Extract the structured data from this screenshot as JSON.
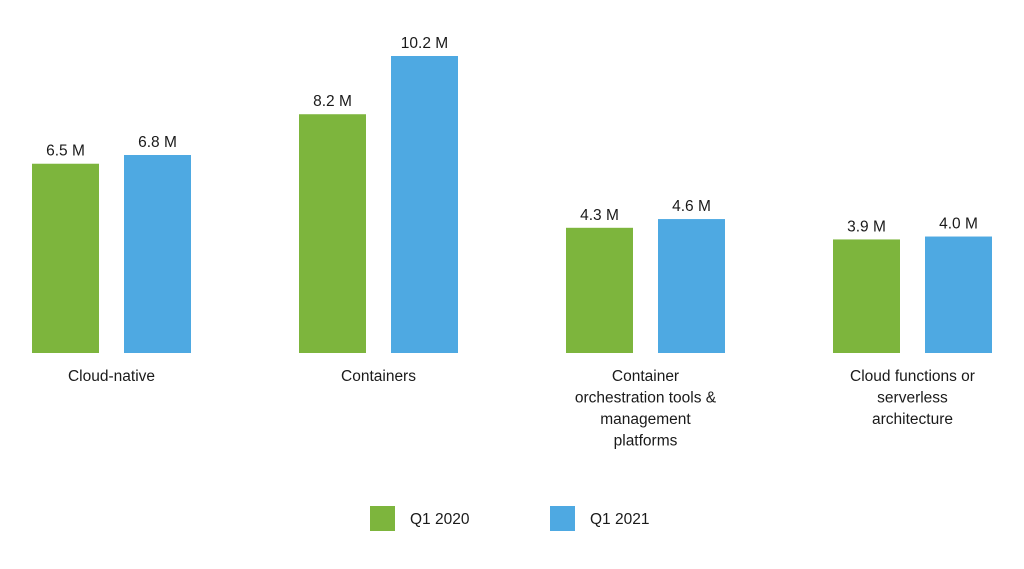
{
  "chart_data": {
    "type": "bar",
    "title": "",
    "xlabel": "",
    "ylabel": "",
    "categories": [
      [
        "Cloud-native"
      ],
      [
        "Containers"
      ],
      [
        "Container",
        "orchestration tools &",
        "management",
        "platforms"
      ],
      [
        "Cloud functions or",
        "serverless",
        "architecture"
      ]
    ],
    "series": [
      {
        "name": "Q1 2020",
        "color": "#7db53d",
        "values": [
          6.5,
          8.2,
          4.3,
          3.9
        ],
        "labels": [
          "6.5 M",
          "8.2 M",
          "4.3 M",
          "3.9 M"
        ]
      },
      {
        "name": "Q1 2021",
        "color": "#4ea9e2",
        "values": [
          6.8,
          10.2,
          4.6,
          4.0
        ],
        "labels": [
          "6.8 M",
          "10.2 M",
          "4.6 M",
          "4.0 M"
        ]
      }
    ],
    "ylim": [
      0,
      10.2
    ],
    "grid": false,
    "legend": "bottom-center"
  }
}
